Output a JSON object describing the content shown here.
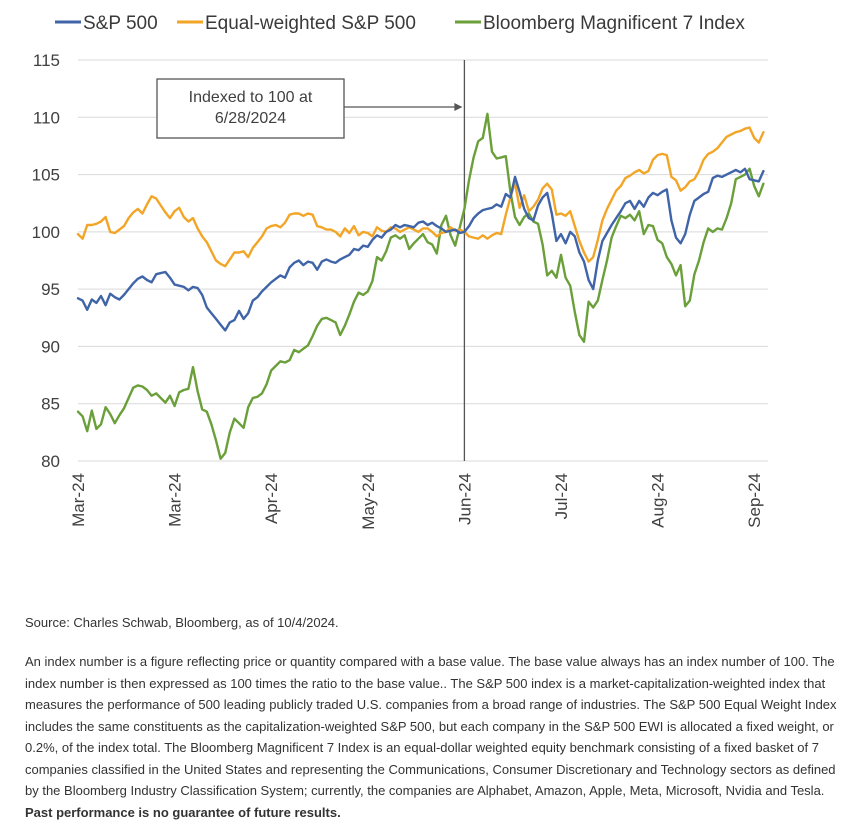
{
  "chart_data": {
    "type": "line",
    "title": "",
    "xlabel": "",
    "ylabel": "",
    "ylim": [
      80,
      115
    ],
    "yticks": [
      80,
      85,
      90,
      95,
      100,
      105,
      110,
      115
    ],
    "grid": "horizontal",
    "legend": "top-left",
    "xtick_labels": [
      "Mar-24",
      "Mar-24",
      "Apr-24",
      "May-24",
      "Jun-24",
      "Jul-24",
      "Aug-24",
      "Sep-24"
    ],
    "x_range": [
      0,
      150
    ],
    "xtick_positions": [
      0,
      21,
      42,
      63,
      84,
      105,
      126,
      147
    ],
    "annotation": {
      "text_lines": [
        "Indexed to 100 at",
        "6/28/2024"
      ],
      "x": 84
    },
    "series": [
      {
        "name": "S&P 500",
        "color": "#3f64a8",
        "values": [
          94.2,
          94.0,
          93.2,
          94.1,
          93.8,
          94.4,
          93.6,
          94.6,
          94.3,
          94.1,
          94.5,
          95.0,
          95.5,
          95.9,
          96.1,
          95.8,
          95.6,
          96.3,
          96.4,
          96.5,
          96.0,
          95.4,
          95.3,
          95.2,
          94.9,
          95.2,
          95.1,
          94.5,
          93.4,
          92.9,
          92.4,
          91.9,
          91.4,
          92.1,
          92.3,
          93.1,
          92.4,
          92.9,
          94.0,
          94.3,
          94.8,
          95.2,
          95.6,
          95.9,
          96.2,
          96.0,
          96.9,
          97.3,
          97.5,
          97.1,
          97.4,
          97.3,
          96.7,
          97.4,
          97.6,
          97.4,
          97.3,
          97.6,
          97.8,
          98.0,
          98.5,
          98.4,
          98.8,
          98.7,
          99.3,
          99.7,
          99.5,
          100.0,
          100.2,
          100.6,
          100.4,
          100.6,
          100.5,
          100.4,
          100.8,
          100.9,
          100.6,
          100.8,
          100.5,
          100.3,
          100.0,
          100.1,
          100.2,
          99.9,
          100.0,
          100.5,
          101.2,
          101.6,
          101.9,
          102.0,
          102.1,
          102.4,
          102.2,
          103.3,
          103.0,
          104.8,
          103.5,
          102.0,
          101.2,
          101.0,
          102.3,
          103.0,
          103.4,
          101.6,
          99.2,
          99.8,
          99.0,
          100.0,
          99.6,
          98.2,
          97.4,
          95.8,
          95.0,
          97.5,
          99.2,
          99.9,
          100.6,
          101.2,
          101.8,
          102.5,
          102.7,
          102.0,
          102.7,
          102.2,
          103.0,
          103.4,
          103.2,
          103.5,
          103.7,
          101.0,
          99.5,
          99.0,
          99.8,
          101.5,
          102.7,
          103.0,
          103.3,
          103.5,
          104.7,
          104.9,
          104.8,
          105.0,
          105.2,
          105.4,
          105.2,
          105.5,
          104.6,
          104.5,
          104.4,
          105.3
        ]
      },
      {
        "name": "Equal-weighted S&P 500",
        "color": "#f2a526",
        "values": [
          99.8,
          99.4,
          100.6,
          100.6,
          100.7,
          100.9,
          101.3,
          100.0,
          99.9,
          100.2,
          100.5,
          101.2,
          101.7,
          102.0,
          101.6,
          102.4,
          103.1,
          102.9,
          102.3,
          101.7,
          101.2,
          101.8,
          102.1,
          101.3,
          100.9,
          101.2,
          100.3,
          99.6,
          99.1,
          98.3,
          97.5,
          97.2,
          97.0,
          97.6,
          98.2,
          98.2,
          98.3,
          97.8,
          98.6,
          99.1,
          99.6,
          100.3,
          100.5,
          100.6,
          100.4,
          100.8,
          101.5,
          101.6,
          101.6,
          101.4,
          101.6,
          101.5,
          100.5,
          100.4,
          100.2,
          100.2,
          100.0,
          99.6,
          100.3,
          99.9,
          100.5,
          99.7,
          100.0,
          99.9,
          99.6,
          100.4,
          100.1,
          100.0,
          100.4,
          100.3,
          100.0,
          100.2,
          100.4,
          100.2,
          100.0,
          100.3,
          100.3,
          100.0,
          99.6,
          99.9,
          100.0,
          100.4,
          100.1,
          100.2,
          100.0,
          99.6,
          99.5,
          99.4,
          99.7,
          99.4,
          99.7,
          99.9,
          99.8,
          101.5,
          103.0,
          104.3,
          102.1,
          103.2,
          101.8,
          102.2,
          102.8,
          103.8,
          104.2,
          103.7,
          101.5,
          101.6,
          101.4,
          101.8,
          100.5,
          99.2,
          98.2,
          97.4,
          97.8,
          99.3,
          101.0,
          102.0,
          102.8,
          103.6,
          104.0,
          104.7,
          104.9,
          105.2,
          105.4,
          105.1,
          105.3,
          106.3,
          106.7,
          106.8,
          106.7,
          104.8,
          104.5,
          103.6,
          103.9,
          104.4,
          104.6,
          105.3,
          106.3,
          106.8,
          107.0,
          107.3,
          107.8,
          108.3,
          108.5,
          108.7,
          108.8,
          109.0,
          109.1,
          108.2,
          107.8,
          108.7
        ]
      },
      {
        "name": "Bloomberg Magnificent 7 Index",
        "color": "#6a9f3a",
        "values": [
          84.3,
          83.9,
          82.6,
          84.4,
          82.8,
          83.2,
          84.7,
          84.1,
          83.3,
          84.0,
          84.6,
          85.5,
          86.4,
          86.6,
          86.5,
          86.2,
          85.7,
          85.9,
          85.5,
          85.1,
          85.7,
          84.8,
          86.0,
          86.2,
          86.3,
          88.2,
          86.1,
          84.5,
          84.3,
          83.2,
          81.8,
          80.2,
          80.7,
          82.5,
          83.7,
          83.3,
          82.9,
          84.7,
          85.5,
          85.6,
          85.9,
          86.7,
          87.9,
          88.3,
          88.7,
          88.6,
          88.8,
          89.7,
          89.5,
          89.8,
          90.1,
          90.9,
          91.8,
          92.4,
          92.5,
          92.3,
          92.1,
          91.0,
          91.8,
          92.8,
          93.9,
          94.7,
          94.5,
          94.8,
          95.7,
          97.8,
          97.5,
          98.3,
          99.5,
          99.7,
          99.4,
          99.7,
          98.5,
          99.0,
          99.4,
          99.8,
          99.1,
          98.9,
          98.1,
          100.6,
          101.4,
          99.7,
          98.8,
          100.4,
          102.0,
          104.5,
          106.5,
          107.9,
          108.2,
          110.3,
          107.0,
          106.4,
          106.5,
          106.6,
          103.5,
          101.3,
          100.6,
          101.3,
          101.6,
          100.9,
          100.7,
          98.9,
          96.2,
          96.6,
          96.0,
          98.0,
          96.0,
          95.3,
          93.0,
          91.0,
          90.4,
          93.9,
          93.4,
          94.0,
          95.8,
          97.5,
          99.5,
          100.5,
          101.4,
          101.2,
          101.5,
          101.0,
          101.8,
          99.8,
          100.6,
          100.5,
          99.3,
          99.0,
          97.8,
          97.2,
          96.2,
          97.1,
          93.5,
          94.0,
          96.3,
          97.5,
          99.1,
          100.3,
          100.0,
          100.3,
          100.2,
          101.2,
          102.5,
          104.6,
          104.8,
          105.0,
          105.5,
          104.0,
          103.1,
          104.2
        ]
      }
    ]
  },
  "footer": {
    "source": "Source: Charles Schwab, Bloomberg, as of 10/4/2024.",
    "body": "An index number is a figure reflecting price or quantity compared with a base value. The base value always has an index number of 100. The index number is then expressed as 100 times the ratio to the base value.. The S&P 500 index is a market-capitalization-weighted index that measures the performance of 500 leading publicly traded U.S. companies from a broad range of industries. The S&P 500 Equal Weight Index includes the same constituents as the capitalization-weighted S&P 500, but each company in the S&P 500 EWI is allocated a fixed weight, or 0.2%, of the index total. The Bloomberg Magnificent 7 Index is an equal-dollar weighted equity benchmark consisting of a fixed basket of 7 companies classified in the United States and representing the Communications, Consumer Discretionary and Technology sectors as defined by the Bloomberg Industry Classification System; currently, the companies are Alphabet, Amazon, Apple, Meta, Microsoft, Nvidia and Tesla.",
    "disclaimer": "Past performance is no guarantee of future results."
  }
}
